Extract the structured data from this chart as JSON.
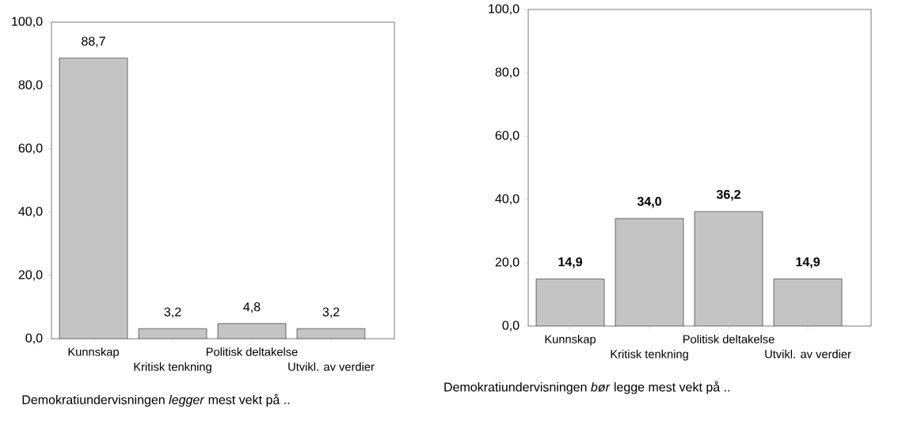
{
  "chart_data": [
    {
      "type": "bar",
      "xlabel": "Demokratiundervisningen *legger* mest vekt på ..",
      "categories": [
        "Kunnskap",
        "Kritisk tenkning",
        "Politisk deltakelse",
        "Utvikl. av verdier"
      ],
      "series": [
        {
          "color": "#c4c4c4",
          "values": [
            88.7,
            3.2,
            4.8,
            3.2
          ],
          "value_labels": [
            "88,7",
            "3,2",
            "4,8",
            "3,2"
          ]
        }
      ],
      "ylim": [
        0,
        100
      ],
      "yticks": [
        {
          "value": 0,
          "label": "0,0"
        },
        {
          "value": 20,
          "label": "20,0"
        },
        {
          "value": 40,
          "label": "40,0"
        },
        {
          "value": 60,
          "label": "60,0"
        },
        {
          "value": 80,
          "label": "80,0"
        },
        {
          "value": 100,
          "label": "100,0"
        }
      ],
      "grid": false
    },
    {
      "type": "bar",
      "xlabel": "Demokratiundervisningen *bør* legge mest vekt på ..",
      "categories": [
        "Kunnskap",
        "Kritisk tenkning",
        "Politisk deltakelse",
        "Utvikl. av verdier"
      ],
      "series": [
        {
          "color": "#c4c4c4",
          "values": [
            14.9,
            34.0,
            36.2,
            14.9
          ],
          "value_labels": [
            "14,9",
            "34,0",
            "36,2",
            "14,9"
          ]
        }
      ],
      "ylim": [
        0,
        100
      ],
      "yticks": [
        {
          "value": 0,
          "label": "0,0"
        },
        {
          "value": 20,
          "label": "20,0"
        },
        {
          "value": 40,
          "label": "40,0"
        },
        {
          "value": 60,
          "label": "60,0"
        },
        {
          "value": 80,
          "label": "80,0"
        },
        {
          "value": 100,
          "label": "100,0"
        }
      ],
      "grid": false
    }
  ]
}
